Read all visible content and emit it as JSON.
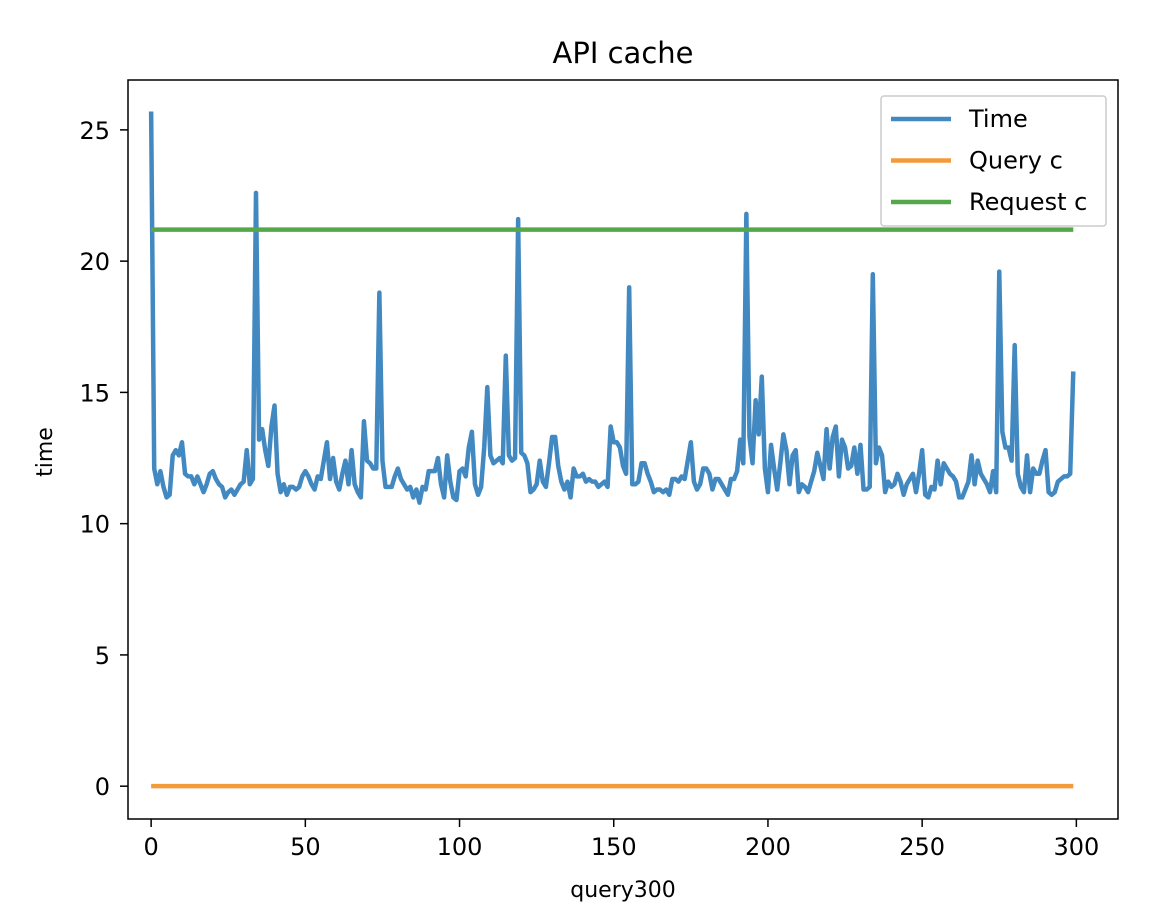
{
  "chart_data": {
    "type": "line",
    "title": "API cache",
    "xlabel": "query300",
    "ylabel": "time",
    "xlim": [
      -7.5,
      313.5
    ],
    "ylim": [
      -1.25,
      26.9
    ],
    "xticks": [
      0,
      50,
      100,
      150,
      200,
      250,
      300
    ],
    "yticks": [
      0,
      5,
      10,
      15,
      20,
      25
    ],
    "grid": false,
    "legend_position": "top-right",
    "series": [
      {
        "name": "Time",
        "color": "#4289c1",
        "x": [
          0,
          1,
          2,
          3,
          4,
          5,
          6,
          7,
          8,
          9,
          10,
          11,
          12,
          13,
          14,
          15,
          16,
          17,
          18,
          19,
          20,
          21,
          22,
          23,
          24,
          25,
          26,
          27,
          28,
          29,
          30,
          31,
          32,
          33,
          34,
          35,
          36,
          37,
          38,
          39,
          40,
          41,
          42,
          43,
          44,
          45,
          46,
          47,
          48,
          49,
          50,
          51,
          52,
          53,
          54,
          55,
          56,
          57,
          58,
          59,
          60,
          61,
          62,
          63,
          64,
          65,
          66,
          67,
          68,
          69,
          70,
          71,
          72,
          73,
          74,
          75,
          76,
          77,
          78,
          79,
          80,
          81,
          82,
          83,
          84,
          85,
          86,
          87,
          88,
          89,
          90,
          91,
          92,
          93,
          94,
          95,
          96,
          97,
          98,
          99,
          100,
          101,
          102,
          103,
          104,
          105,
          106,
          107,
          108,
          109,
          110,
          111,
          112,
          113,
          114,
          115,
          116,
          117,
          118,
          119,
          120,
          121,
          122,
          123,
          124,
          125,
          126,
          127,
          128,
          129,
          130,
          131,
          132,
          133,
          134,
          135,
          136,
          137,
          138,
          139,
          140,
          141,
          142,
          143,
          144,
          145,
          146,
          147,
          148,
          149,
          150,
          151,
          152,
          153,
          154,
          155,
          156,
          157,
          158,
          159,
          160,
          161,
          162,
          163,
          164,
          165,
          166,
          167,
          168,
          169,
          170,
          171,
          172,
          173,
          174,
          175,
          176,
          177,
          178,
          179,
          180,
          181,
          182,
          183,
          184,
          185,
          186,
          187,
          188,
          189,
          190,
          191,
          192,
          193,
          194,
          195,
          196,
          197,
          198,
          199,
          200,
          201,
          202,
          203,
          204,
          205,
          206,
          207,
          208,
          209,
          210,
          211,
          212,
          213,
          214,
          215,
          216,
          217,
          218,
          219,
          220,
          221,
          222,
          223,
          224,
          225,
          226,
          227,
          228,
          229,
          230,
          231,
          232,
          233,
          234,
          235,
          236,
          237,
          238,
          239,
          240,
          241,
          242,
          243,
          244,
          245,
          246,
          247,
          248,
          249,
          250,
          251,
          252,
          253,
          254,
          255,
          256,
          257,
          258,
          259,
          260,
          261,
          262,
          263,
          264,
          265,
          266,
          267,
          268,
          269,
          270,
          271,
          272,
          273,
          274,
          275,
          276,
          277,
          278,
          279,
          280,
          281,
          282,
          283,
          284,
          285,
          286,
          287,
          288,
          289,
          290,
          291,
          292,
          293,
          294,
          295,
          296,
          297,
          298,
          299
        ],
        "y": [
          25.7,
          12.1,
          11.5,
          12.0,
          11.4,
          11.0,
          11.1,
          12.6,
          12.8,
          12.6,
          13.1,
          11.9,
          11.8,
          11.8,
          11.5,
          11.8,
          11.5,
          11.2,
          11.5,
          11.9,
          12.0,
          11.7,
          11.5,
          11.4,
          11.0,
          11.2,
          11.3,
          11.1,
          11.3,
          11.5,
          11.6,
          12.8,
          11.5,
          11.7,
          22.6,
          13.2,
          13.6,
          12.8,
          12.2,
          13.7,
          14.5,
          11.9,
          11.2,
          11.5,
          11.1,
          11.4,
          11.4,
          11.3,
          11.4,
          11.8,
          12.0,
          11.8,
          11.5,
          11.3,
          11.8,
          11.7,
          12.4,
          13.1,
          11.7,
          12.5,
          11.6,
          11.3,
          11.9,
          12.4,
          11.5,
          12.8,
          11.5,
          11.2,
          11.0,
          13.9,
          12.4,
          12.3,
          12.1,
          12.1,
          18.8,
          12.4,
          11.4,
          11.4,
          11.4,
          11.8,
          12.1,
          11.7,
          11.5,
          11.3,
          11.4,
          11.0,
          11.3,
          10.8,
          11.4,
          11.3,
          12.0,
          12.0,
          12.0,
          12.5,
          11.5,
          11.0,
          12.6,
          11.6,
          11.0,
          10.9,
          12.0,
          12.1,
          11.8,
          12.9,
          13.5,
          11.5,
          11.1,
          11.4,
          12.9,
          15.2,
          12.6,
          12.3,
          12.4,
          12.5,
          12.3,
          16.4,
          12.6,
          12.4,
          12.5,
          21.6,
          12.7,
          12.6,
          12.3,
          11.2,
          11.3,
          11.5,
          12.4,
          11.6,
          11.4,
          12.3,
          13.3,
          13.3,
          12.2,
          11.6,
          11.3,
          11.6,
          11.0,
          12.1,
          11.8,
          11.8,
          11.9,
          11.6,
          11.7,
          11.6,
          11.6,
          11.4,
          11.5,
          11.6,
          11.4,
          13.7,
          13.1,
          13.1,
          12.9,
          12.2,
          11.9,
          19.0,
          11.5,
          11.5,
          11.6,
          12.3,
          12.3,
          11.9,
          11.6,
          11.2,
          11.3,
          11.3,
          11.2,
          11.3,
          11.1,
          11.7,
          11.7,
          11.6,
          11.8,
          11.7,
          12.4,
          13.1,
          11.6,
          11.3,
          11.5,
          12.1,
          12.1,
          11.9,
          11.3,
          11.7,
          11.7,
          11.5,
          11.3,
          11.1,
          11.7,
          11.7,
          12.0,
          13.2,
          12.3,
          21.8,
          13.3,
          12.3,
          14.7,
          13.4,
          15.6,
          12.1,
          11.2,
          13.0,
          12.1,
          11.3,
          12.3,
          13.4,
          12.8,
          11.5,
          12.6,
          12.8,
          11.2,
          11.5,
          11.4,
          11.2,
          11.6,
          12.0,
          12.7,
          12.2,
          11.7,
          13.6,
          12.1,
          13.3,
          13.7,
          11.8,
          13.2,
          12.9,
          12.1,
          12.2,
          12.9,
          11.9,
          13.0,
          11.3,
          11.3,
          11.4,
          19.5,
          12.3,
          12.9,
          12.6,
          11.2,
          11.6,
          11.4,
          11.5,
          11.9,
          11.6,
          11.1,
          11.5,
          11.7,
          11.9,
          11.2,
          11.9,
          12.8,
          11.1,
          11.0,
          11.4,
          11.3,
          12.4,
          11.5,
          12.3,
          12.1,
          11.9,
          11.8,
          11.6,
          11.0,
          11.0,
          11.3,
          11.6,
          12.6,
          11.5,
          12.4,
          11.9,
          11.7,
          11.5,
          11.2,
          12.0,
          11.2,
          19.6,
          13.5,
          12.9,
          12.9,
          12.4,
          16.8,
          11.9,
          11.4,
          11.2,
          12.6,
          11.2,
          12.1,
          11.9,
          11.9,
          12.4,
          12.8,
          11.2,
          11.1,
          11.2,
          11.6,
          11.7,
          11.8,
          11.8,
          11.9,
          15.8
        ]
      },
      {
        "name": "Query c",
        "color": "#f39a3b",
        "x": [
          0,
          299
        ],
        "y": [
          0,
          0
        ]
      },
      {
        "name": "Request c",
        "color": "#55a84a",
        "x": [
          0,
          299
        ],
        "y": [
          21.2,
          21.2
        ]
      }
    ]
  }
}
